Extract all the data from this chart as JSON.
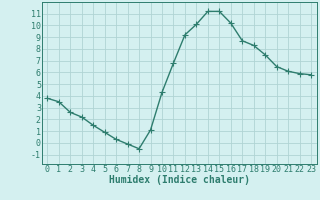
{
  "x": [
    0,
    1,
    2,
    3,
    4,
    5,
    6,
    7,
    8,
    9,
    10,
    11,
    12,
    13,
    14,
    15,
    16,
    17,
    18,
    19,
    20,
    21,
    22,
    23
  ],
  "y": [
    3.8,
    3.5,
    2.6,
    2.2,
    1.5,
    0.9,
    0.3,
    -0.1,
    -0.5,
    1.1,
    4.3,
    6.8,
    9.2,
    10.1,
    11.2,
    11.2,
    10.2,
    8.7,
    8.3,
    7.5,
    6.5,
    6.1,
    5.9,
    5.8
  ],
  "line_color": "#2e7d6e",
  "marker": "+",
  "bg_color": "#d4f0f0",
  "grid_color": "#b0d4d4",
  "xlabel": "Humidex (Indice chaleur)",
  "xlim": [
    -0.5,
    23.5
  ],
  "ylim": [
    -1.8,
    12.0
  ],
  "xticks": [
    0,
    1,
    2,
    3,
    4,
    5,
    6,
    7,
    8,
    9,
    10,
    11,
    12,
    13,
    14,
    15,
    16,
    17,
    18,
    19,
    20,
    21,
    22,
    23
  ],
  "yticks": [
    -1,
    0,
    1,
    2,
    3,
    4,
    5,
    6,
    7,
    8,
    9,
    10,
    11
  ],
  "xlabel_fontsize": 7,
  "tick_fontsize": 6,
  "line_width": 1.0,
  "marker_size": 4,
  "marker_edge_width": 0.8
}
